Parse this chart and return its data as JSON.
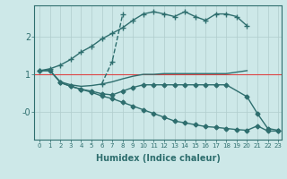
{
  "xlabel": "Humidex (Indice chaleur)",
  "background_color": "#cde8e8",
  "grid_color": "#b0cccc",
  "line_color": "#2e6e6e",
  "red_line_color": "#dd4444",
  "xlim": [
    -0.5,
    23.3
  ],
  "ylim": [
    -0.75,
    2.85
  ],
  "xticks": [
    0,
    1,
    2,
    3,
    4,
    5,
    6,
    7,
    8,
    9,
    10,
    11,
    12,
    13,
    14,
    15,
    16,
    17,
    18,
    19,
    20,
    21,
    22,
    23
  ],
  "series": [
    {
      "x": [
        0,
        1,
        2,
        3,
        4,
        5,
        6,
        7,
        8,
        9,
        10,
        11,
        12,
        13,
        14,
        15,
        16,
        17,
        18,
        19,
        20
      ],
      "y": [
        1.1,
        1.15,
        1.25,
        1.4,
        1.6,
        1.75,
        1.95,
        2.1,
        2.25,
        2.45,
        2.62,
        2.68,
        2.62,
        2.55,
        2.68,
        2.55,
        2.45,
        2.62,
        2.62,
        2.55,
        2.3
      ],
      "marker": "+",
      "markersize": 4,
      "linewidth": 1.0
    },
    {
      "x": [
        6,
        7,
        8
      ],
      "y": [
        0.75,
        1.35,
        2.6
      ],
      "marker": "+",
      "markersize": 4,
      "linewidth": 1.0,
      "linestyle": "--"
    },
    {
      "x": [
        0,
        1,
        2,
        3,
        4,
        5,
        6,
        7,
        8,
        9,
        10,
        11,
        12,
        13,
        14,
        15,
        16,
        17,
        18,
        20
      ],
      "y": [
        1.1,
        1.1,
        0.8,
        0.72,
        0.68,
        0.7,
        0.74,
        0.8,
        0.88,
        0.95,
        1.0,
        1.0,
        1.02,
        1.02,
        1.02,
        1.02,
        1.02,
        1.02,
        1.02,
        1.1
      ],
      "marker": null,
      "markersize": 0,
      "linewidth": 1.0,
      "linestyle": "-"
    },
    {
      "x": [
        2,
        3,
        4,
        5,
        6,
        7,
        8,
        9,
        10,
        11,
        12,
        13,
        14,
        15,
        16,
        17,
        18,
        20,
        21,
        22,
        23
      ],
      "y": [
        0.78,
        0.68,
        0.6,
        0.55,
        0.48,
        0.45,
        0.55,
        0.65,
        0.72,
        0.72,
        0.72,
        0.72,
        0.72,
        0.72,
        0.72,
        0.72,
        0.72,
        0.4,
        -0.05,
        -0.45,
        -0.5
      ],
      "marker": "D",
      "markersize": 2.5,
      "linewidth": 1.0,
      "linestyle": "-"
    },
    {
      "x": [
        0,
        1,
        2,
        3,
        4,
        5,
        6,
        7,
        8,
        9,
        10,
        11,
        12,
        13,
        14,
        15,
        16,
        17,
        18,
        19,
        20,
        21,
        22,
        23
      ],
      "y": [
        1.1,
        1.1,
        0.78,
        0.68,
        0.6,
        0.52,
        0.42,
        0.35,
        0.25,
        0.15,
        0.05,
        -0.05,
        -0.15,
        -0.25,
        -0.3,
        -0.35,
        -0.4,
        -0.42,
        -0.45,
        -0.48,
        -0.5,
        -0.38,
        -0.52,
        -0.52
      ],
      "marker": "D",
      "markersize": 2.5,
      "linewidth": 1.0,
      "linestyle": "-"
    }
  ],
  "red_hline": 1.0
}
